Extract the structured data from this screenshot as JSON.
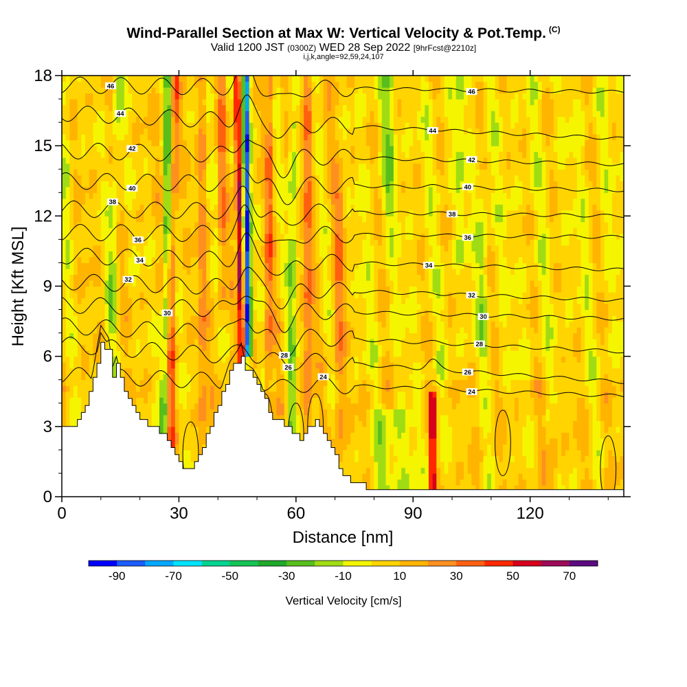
{
  "title": {
    "main": "Wind-Parallel Section at Max W: Vertical Velocity & Pot.Temp.",
    "copyright": "(C)",
    "valid_prefix": "Valid 1200 JST",
    "valid_z": "(0300Z)",
    "valid_date": "WED 28 Sep 2022",
    "fcst": "[9hrFcst@2210z]",
    "params": "i,j,k,angle=92,59,24,107"
  },
  "chart_data": {
    "type": "heatmap",
    "xlabel": "Distance [nm]",
    "ylabel": "Height [Kft MSL]",
    "xlim": [
      0,
      144
    ],
    "ylim": [
      0,
      18
    ],
    "xticks": [
      0,
      30,
      60,
      90,
      120
    ],
    "yticks": [
      0,
      3,
      6,
      9,
      12,
      15,
      18
    ],
    "colorbar": {
      "label": "Vertical Velocity [cm/s]",
      "tick_labels": [
        "-90",
        "-70",
        "-50",
        "-30",
        "-10",
        "10",
        "30",
        "50",
        "70"
      ],
      "tick_values": [
        -90,
        -70,
        -50,
        -30,
        -10,
        10,
        30,
        50,
        70
      ],
      "boundaries": [
        -100,
        -90,
        -80,
        -70,
        -60,
        -50,
        -40,
        -30,
        -20,
        -10,
        0,
        10,
        20,
        30,
        40,
        50,
        60,
        70,
        80
      ],
      "colors": [
        "#0000ff",
        "#1c5cff",
        "#00a8ff",
        "#00e4ff",
        "#00d490",
        "#14c454",
        "#1faa2a",
        "#58be1c",
        "#a0dc14",
        "#f5f500",
        "#ffd400",
        "#ffb400",
        "#ff9020",
        "#ff6010",
        "#ff2800",
        "#d7001c",
        "#9c0a58",
        "#5c0a80"
      ]
    },
    "terrain": [
      [
        0,
        3
      ],
      [
        3,
        3
      ],
      [
        6,
        4
      ],
      [
        8,
        5
      ],
      [
        10,
        6.6
      ],
      [
        12,
        6.2
      ],
      [
        13,
        5.2
      ],
      [
        14,
        5.6
      ],
      [
        15,
        5
      ],
      [
        17,
        4.2
      ],
      [
        20,
        3.2
      ],
      [
        23,
        3.1
      ],
      [
        26,
        2.6
      ],
      [
        28,
        2.1
      ],
      [
        30,
        1.6
      ],
      [
        31,
        1.3
      ],
      [
        33,
        1.3
      ],
      [
        35,
        1.8
      ],
      [
        37,
        2.6
      ],
      [
        39,
        3.6
      ],
      [
        41,
        4.4
      ],
      [
        43,
        5.3
      ],
      [
        45,
        5.8
      ],
      [
        46,
        6.1
      ],
      [
        47,
        5.4
      ],
      [
        49,
        5.1
      ],
      [
        51,
        4.5
      ],
      [
        53,
        3.6
      ],
      [
        55,
        3.2
      ],
      [
        57,
        3.1
      ],
      [
        59,
        2.7
      ],
      [
        61,
        2.4
      ],
      [
        63,
        3
      ],
      [
        65,
        3.2
      ],
      [
        67,
        2.6
      ],
      [
        70,
        1.7
      ],
      [
        72,
        0.9
      ],
      [
        74,
        0.6
      ],
      [
        77,
        0.5
      ],
      [
        80,
        0.3
      ],
      [
        85,
        0.4
      ],
      [
        90,
        0.3
      ],
      [
        95,
        0.3
      ],
      [
        110,
        0.35
      ],
      [
        144,
        0.35
      ]
    ],
    "theta_contours": [
      {
        "label": "46",
        "h0": 17.6,
        "h1": 17.3,
        "lx": 12.5,
        "lx2": 105
      },
      {
        "label": "44",
        "h0": 16.4,
        "h1": 15.3,
        "lx": 15,
        "lx2": 95
      },
      {
        "label": "42",
        "h0": 14.8,
        "h1": 14.2,
        "lx": 18,
        "lx2": 105
      },
      {
        "label": "40",
        "h0": 13.5,
        "h1": 13.1,
        "lx": 18,
        "lx2": 104
      },
      {
        "label": "38",
        "h0": 12.3,
        "h1": 12.0,
        "lx": 13,
        "lx2": 100
      },
      {
        "label": "36",
        "h0": 11.3,
        "h1": 11.1,
        "lx": 19.5,
        "lx2": 104
      },
      {
        "label": "34",
        "h0": 10.3,
        "h1": 9.7,
        "lx": 20,
        "lx2": 94
      },
      {
        "label": "32",
        "h0": 9.2,
        "h1": 8.4,
        "lx": 17,
        "lx2": 105
      },
      {
        "label": "30",
        "h0": 8.2,
        "h1": 7.6,
        "lx": 27,
        "lx2": 108
      },
      {
        "label": "28",
        "h0": 7.3,
        "h1": 6.2,
        "lx": 57,
        "lx2": 107
      },
      {
        "label": "26",
        "h0": 6.5,
        "h1": 4.9,
        "lx": 58,
        "lx2": 104
      },
      {
        "label": "24",
        "h0": 5.2,
        "h1": 4.3,
        "lx": 67,
        "lx2": 105
      }
    ]
  }
}
